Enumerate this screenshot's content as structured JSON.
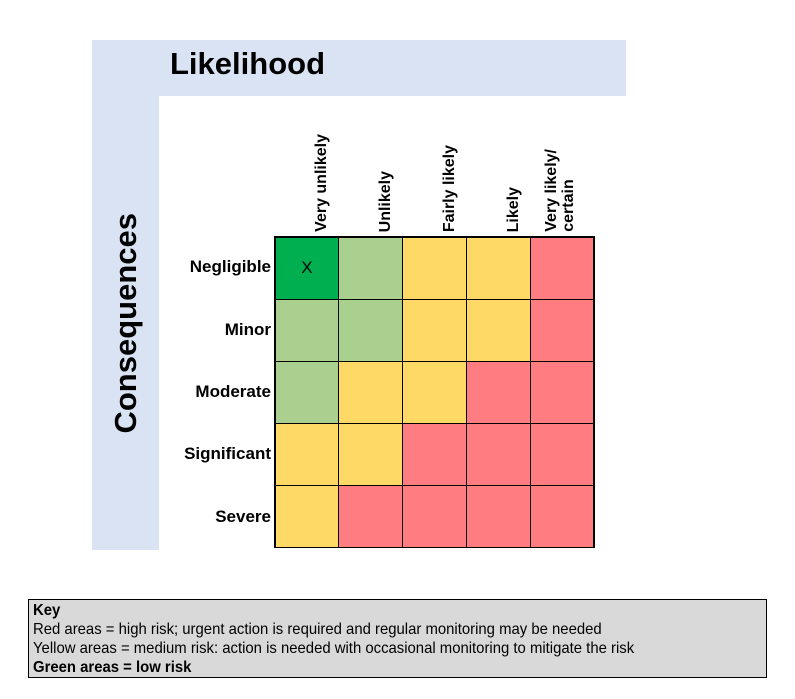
{
  "title": "Likelihood",
  "yaxis": "Consequences",
  "columns": [
    "Very unlikely",
    "Unlikely",
    "Fairly likely",
    "Likely",
    "Very likely/\ncertain"
  ],
  "rows": [
    "Negligible",
    "Minor",
    "Moderate",
    "Significant",
    "Severe"
  ],
  "colors": {
    "dark_green": "#00b050",
    "light_green": "#a9d08e",
    "yellow": "#ffd966",
    "red": "#ff7c80",
    "band": "#dae3f3",
    "key_bg": "#d9d9d9"
  },
  "matrix": [
    [
      "dark_green",
      "light_green",
      "yellow",
      "yellow",
      "red"
    ],
    [
      "light_green",
      "light_green",
      "yellow",
      "yellow",
      "red"
    ],
    [
      "light_green",
      "yellow",
      "yellow",
      "red",
      "red"
    ],
    [
      "yellow",
      "yellow",
      "red",
      "red",
      "red"
    ],
    [
      "yellow",
      "red",
      "red",
      "red",
      "red"
    ]
  ],
  "marks": [
    [
      "X",
      "",
      "",
      "",
      ""
    ],
    [
      "",
      "",
      "",
      "",
      ""
    ],
    [
      "",
      "",
      "",
      "",
      ""
    ],
    [
      "",
      "",
      "",
      "",
      ""
    ],
    [
      "",
      "",
      "",
      "",
      ""
    ]
  ],
  "key": {
    "heading": "Key",
    "red": "Red areas = high risk; urgent action is required and regular monitoring may be needed",
    "yellow": "Yellow areas = medium risk: action is needed with occasional monitoring to mitigate the risk",
    "green": "Green areas = low risk"
  }
}
